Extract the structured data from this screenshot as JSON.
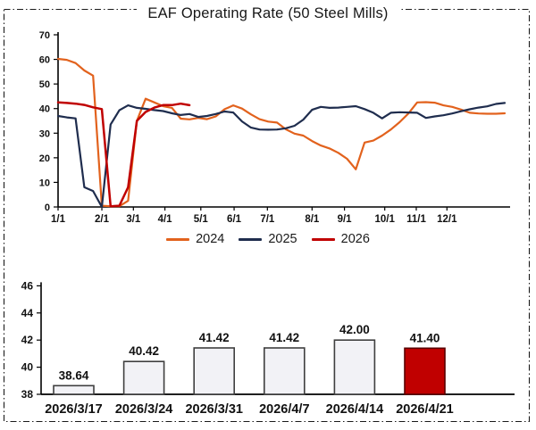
{
  "frame": {
    "border_color": "#1a1a1a",
    "background": "#ffffff"
  },
  "chart_data": [
    {
      "type": "line",
      "title": "EAF Operating Rate (50 Steel Mills)",
      "xlabel": "",
      "ylabel": "",
      "ylim": [
        0,
        70
      ],
      "yticks": [
        0,
        10,
        20,
        30,
        40,
        50,
        60,
        70
      ],
      "grid": false,
      "legend_position": "bottom",
      "x_unit": "weekly index from Jan 1",
      "weeks_total": 51,
      "xtick_labels": [
        "1/1",
        "2/1",
        "3/1",
        "4/1",
        "5/1",
        "6/1",
        "7/1",
        "8/1",
        "9/1",
        "10/1",
        "11/1",
        "12/1"
      ],
      "xtick_weeks": [
        0,
        5.0,
        8.6,
        12.2,
        16.3,
        20.1,
        23.9,
        29.0,
        32.7,
        37.3,
        40.9,
        44.4
      ],
      "series": [
        {
          "name": "2024",
          "color": "#E2621D",
          "line_width": 2.2,
          "values": [
            60.2,
            59.8,
            58.5,
            55.5,
            53.4,
            0.5,
            0.3,
            0.3,
            2.5,
            35.0,
            44.0,
            42.5,
            41.0,
            40.3,
            35.9,
            35.6,
            36.2,
            35.7,
            36.8,
            39.7,
            41.3,
            40.0,
            37.7,
            35.7,
            34.7,
            34.3,
            31.6,
            29.8,
            29.0,
            26.8,
            25.0,
            23.8,
            22.0,
            19.6,
            15.3,
            26.2,
            27.0,
            29.0,
            31.5,
            34.5,
            38.0,
            42.5,
            42.6,
            42.4,
            41.3,
            40.7,
            39.6,
            38.3,
            38.0,
            37.9,
            37.9,
            38.1
          ]
        },
        {
          "name": "2025",
          "color": "#1F2D4E",
          "line_width": 2.2,
          "values": [
            37.0,
            36.4,
            36.0,
            8.0,
            6.5,
            0.0,
            33.5,
            39.3,
            41.3,
            40.3,
            39.9,
            39.4,
            39.0,
            38.1,
            37.4,
            37.8,
            36.6,
            37.0,
            37.8,
            38.8,
            38.4,
            34.8,
            32.3,
            31.5,
            31.4,
            31.5,
            32.0,
            33.0,
            35.5,
            39.5,
            40.7,
            40.3,
            40.4,
            40.7,
            41.0,
            39.8,
            38.3,
            36.0,
            38.3,
            38.5,
            38.4,
            38.3,
            36.2,
            36.8,
            37.3,
            38.0,
            38.9,
            39.7,
            40.4,
            40.9,
            41.9,
            42.3
          ]
        },
        {
          "name": "2026",
          "color": "#C00000",
          "line_width": 2.5,
          "values": [
            42.5,
            42.3,
            42.0,
            41.5,
            40.5,
            39.8,
            0.3,
            0.5,
            8.0,
            35.0,
            38.64,
            40.42,
            41.42,
            41.42,
            42.0,
            41.4
          ]
        }
      ]
    },
    {
      "type": "bar",
      "title": "",
      "xlabel": "",
      "ylabel": "",
      "ylim": [
        38,
        46
      ],
      "yticks": [
        38,
        40,
        42,
        44,
        46
      ],
      "grid": false,
      "categories": [
        "2026/3/17",
        "2026/3/24",
        "2026/3/31",
        "2026/4/7",
        "2026/4/14",
        "2026/4/21"
      ],
      "values": [
        38.64,
        40.42,
        41.42,
        41.42,
        42.0,
        41.4
      ],
      "labels": [
        "38.64",
        "40.42",
        "41.42",
        "41.42",
        "42.00",
        "41.40"
      ],
      "bar_fill": "#F2F2F6",
      "bar_border": "#3F3F3F",
      "highlight_index": 5,
      "highlight_fill": "#C00000",
      "highlight_border": "#5A0000"
    }
  ]
}
